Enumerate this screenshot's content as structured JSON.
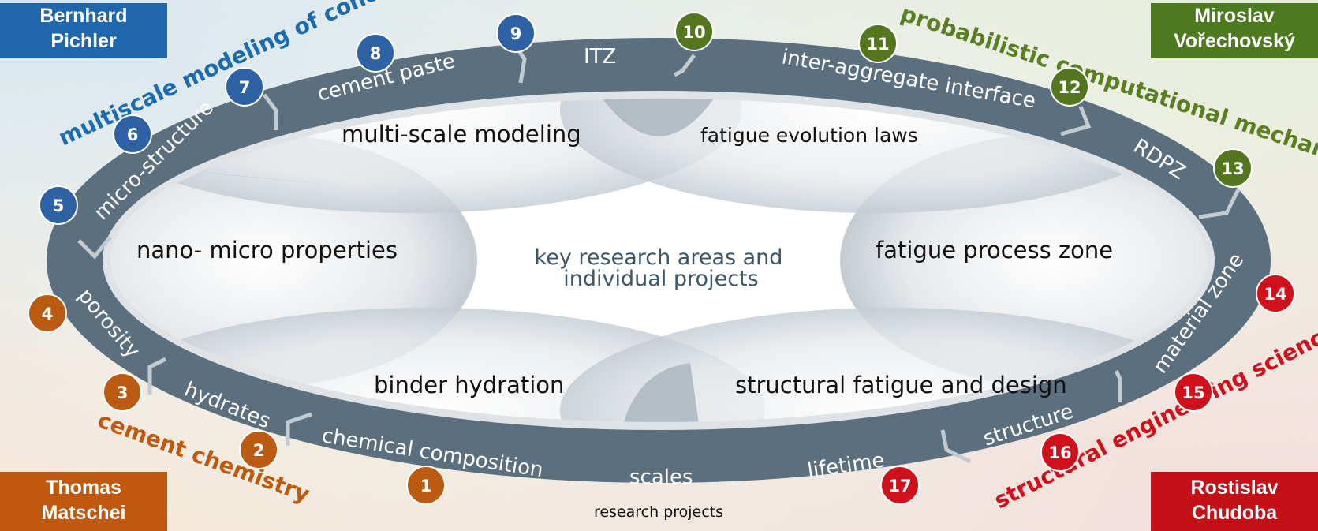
{
  "corners": {
    "top_left": [
      "Bernhard",
      "Pichler"
    ],
    "top_right": [
      "Miroslav",
      "Vořechovský"
    ],
    "bottom_left": [
      "Thomas",
      "Matschei"
    ],
    "bottom_right": [
      "Rostislav",
      "Chudoba"
    ]
  },
  "themes": {
    "multiscale": "multiscale modeling of concrete",
    "probabilistic": "probabilistic computational mechanics",
    "cement": "cement chemistry",
    "structural": "structural engineering science"
  },
  "colors": {
    "blue": "#2e62a4",
    "green": "#54761e",
    "orange": "#bb5a11",
    "red": "#d0101a",
    "ring": "#5b6f7e"
  },
  "ring_labels": {
    "porosity": "porosity",
    "micro_structure": "micro-structure",
    "cement_paste": "cement paste",
    "itz": "ITZ",
    "inter_aggregate": "inter-aggregate interface",
    "rdpz": "RDPZ",
    "material_zone": "material zone",
    "structure": "structure",
    "lifetime": "lifetime",
    "scales": "scales",
    "chemical_composition": "chemical composition",
    "hydrates": "hydrates"
  },
  "areas": {
    "multi_scale_modeling": "multi-scale modeling",
    "fatigue_evolution_laws": "fatigue evolution laws",
    "nano_micro": "nano- micro properties",
    "fatigue_process_zone": "fatigue process zone",
    "binder_hydration": "binder hydration",
    "structural_fatigue": "structural fatigue and design"
  },
  "center": {
    "line1": "key research areas and",
    "line2": "individual projects"
  },
  "footer": "research projects",
  "projects": [
    {
      "n": "1",
      "group": "orange"
    },
    {
      "n": "2",
      "group": "orange"
    },
    {
      "n": "3",
      "group": "orange"
    },
    {
      "n": "4",
      "group": "orange"
    },
    {
      "n": "5",
      "group": "blue"
    },
    {
      "n": "6",
      "group": "blue"
    },
    {
      "n": "7",
      "group": "blue"
    },
    {
      "n": "8",
      "group": "blue"
    },
    {
      "n": "9",
      "group": "blue"
    },
    {
      "n": "10",
      "group": "green"
    },
    {
      "n": "11",
      "group": "green"
    },
    {
      "n": "12",
      "group": "green"
    },
    {
      "n": "13",
      "group": "green"
    },
    {
      "n": "14",
      "group": "red"
    },
    {
      "n": "15",
      "group": "red"
    },
    {
      "n": "16",
      "group": "red"
    },
    {
      "n": "17",
      "group": "red"
    }
  ]
}
